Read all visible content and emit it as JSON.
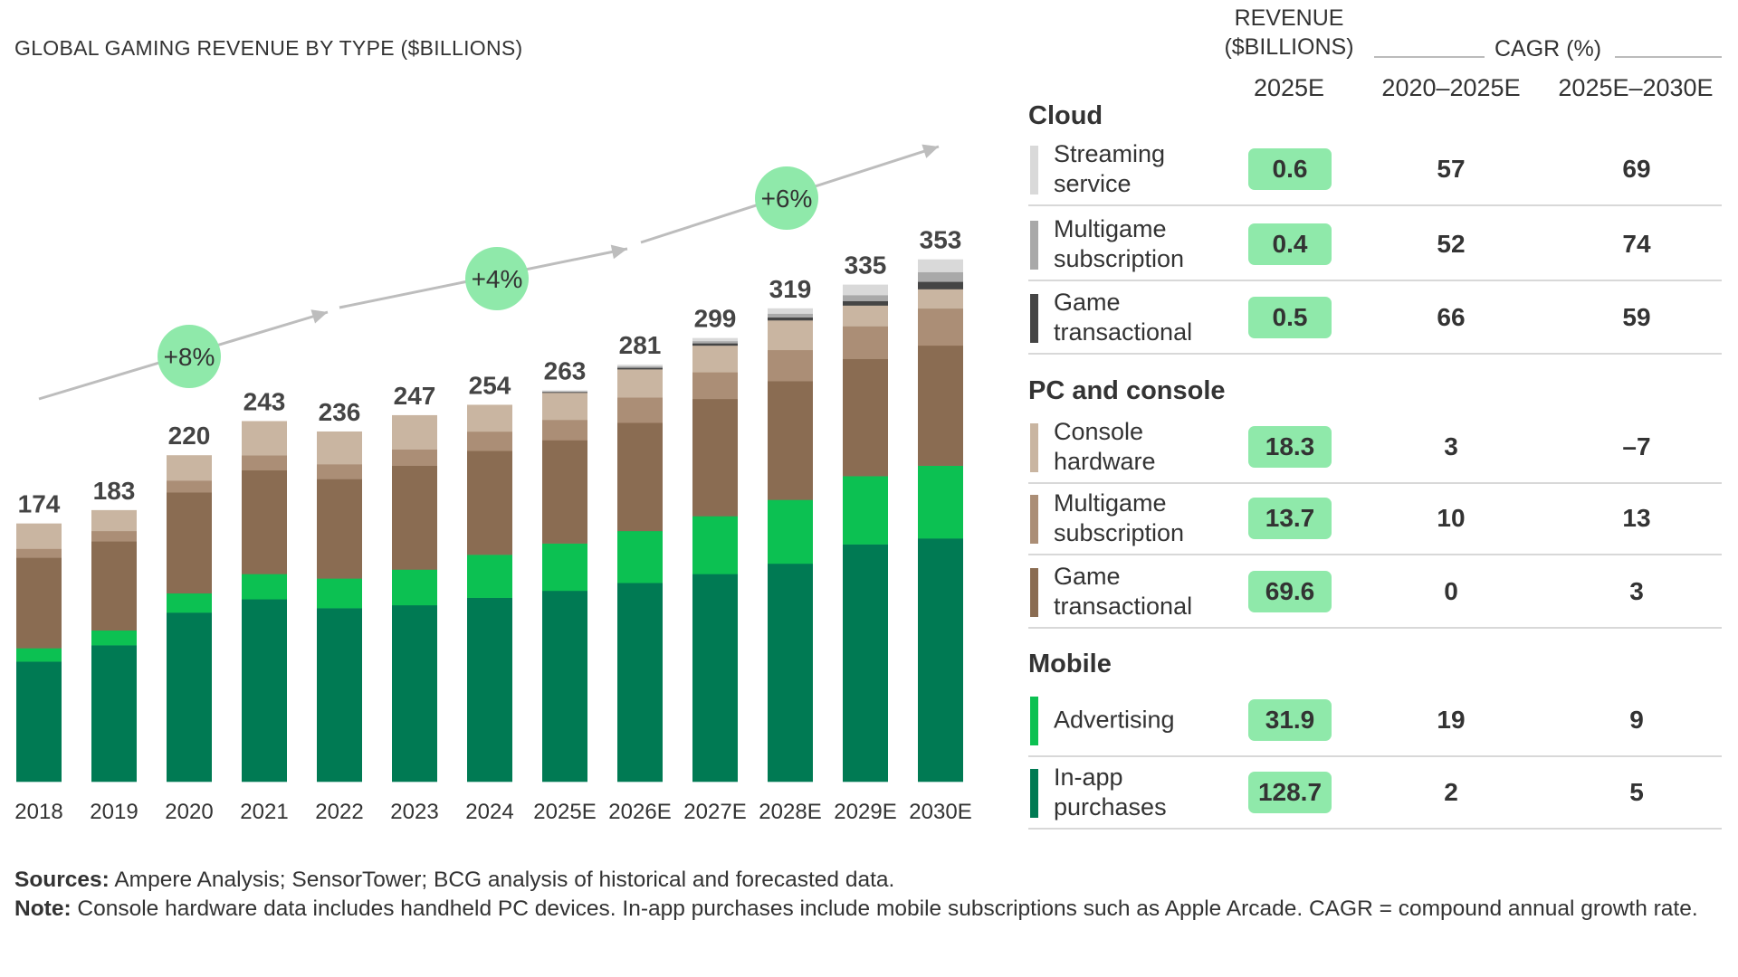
{
  "title": "GLOBAL GAMING REVENUE BY TYPE ($BILLIONS)",
  "chart_data": {
    "type": "bar",
    "stacked": true,
    "title": "GLOBAL GAMING REVENUE BY TYPE ($BILLIONS)",
    "categories": [
      "2018",
      "2019",
      "2020",
      "2021",
      "2022",
      "2023",
      "2024",
      "2025E",
      "2026E",
      "2027E",
      "2028E",
      "2029E",
      "2030E"
    ],
    "totals": [
      "174",
      "183",
      "220",
      "243",
      "236",
      "247",
      "254",
      "263",
      "281",
      "299",
      "319",
      "335",
      "353"
    ],
    "series": [
      {
        "name": "In-app purchases",
        "color": "#007a53",
        "values": [
          81,
          92,
          114,
          123,
          117,
          119,
          124,
          128.7,
          134,
          140,
          147,
          160,
          164
        ]
      },
      {
        "name": "Advertising",
        "color": "#0cc152",
        "values": [
          9,
          10,
          13,
          17,
          20,
          24,
          29,
          31.9,
          35,
          39,
          43,
          46,
          49
        ]
      },
      {
        "name": "Game transactional",
        "color": "#8a6c52",
        "values": [
          61,
          60,
          68,
          70,
          67,
          70,
          70,
          69.6,
          73,
          79,
          80,
          79,
          81
        ]
      },
      {
        "name": "Multigame subscription",
        "color": "#ab8e76",
        "values": [
          6,
          7,
          8,
          10,
          10,
          11,
          13,
          13.7,
          17,
          18,
          21,
          22,
          25
        ]
      },
      {
        "name": "Console hardware",
        "color": "#c9b5a1",
        "values": [
          17,
          14,
          17,
          23,
          22,
          23,
          18,
          18.3,
          19,
          18,
          20,
          14,
          13
        ]
      },
      {
        "name": "Game transactional",
        "color": "#454545",
        "values": [
          0,
          0,
          0,
          0,
          0,
          0,
          0,
          0.5,
          1,
          1.5,
          2,
          3,
          5
        ]
      },
      {
        "name": "Multigame subscription",
        "color": "#a9a9a9",
        "values": [
          0,
          0,
          0,
          0,
          0,
          0,
          0,
          0.4,
          1,
          1.5,
          2.5,
          4,
          6.5
        ]
      },
      {
        "name": "Streaming service",
        "color": "#d9d9d9",
        "values": [
          0,
          0,
          0,
          0,
          0,
          0,
          0,
          0.6,
          1,
          2,
          3.5,
          7,
          8.5
        ]
      }
    ],
    "growth_annotations": [
      "+8%",
      "+4%",
      "+6%"
    ],
    "ylim": [
      0,
      380
    ]
  },
  "table": {
    "revenue_header": "REVENUE ($BILLIONS)",
    "cagr_header": "CAGR (%)",
    "col_rev": "2025E",
    "col_c1": "2020–2025E",
    "col_c2": "2025E–2030E",
    "sections": [
      {
        "name": "Cloud",
        "rows": [
          {
            "label": "Streaming service",
            "value": "0.6",
            "c1": "57",
            "c2": "69",
            "color": "#d9d9d9"
          },
          {
            "label": "Multigame subscription",
            "value": "0.4",
            "c1": "52",
            "c2": "74",
            "color": "#a9a9a9"
          },
          {
            "label": "Game transactional",
            "value": "0.5",
            "c1": "66",
            "c2": "59",
            "color": "#454545"
          }
        ]
      },
      {
        "name": "PC and console",
        "rows": [
          {
            "label": "Console hardware",
            "value": "18.3",
            "c1": "3",
            "c2": "–7",
            "color": "#c9b5a1"
          },
          {
            "label": "Multigame subscription",
            "value": "13.7",
            "c1": "10",
            "c2": "13",
            "color": "#ab8e76"
          },
          {
            "label": "Game transactional",
            "value": "69.6",
            "c1": "0",
            "c2": "3",
            "color": "#8a6c52"
          }
        ]
      },
      {
        "name": "Mobile",
        "rows": [
          {
            "label": "Advertising",
            "value": "31.9",
            "c1": "19",
            "c2": "9",
            "color": "#0cc152"
          },
          {
            "label": "In-app purchases",
            "value": "128.7",
            "c1": "2",
            "c2": "5",
            "color": "#007a53"
          }
        ]
      }
    ]
  },
  "footer": {
    "sources_label": "Sources:",
    "sources": "Ampere Analysis; SensorTower; BCG analysis of historical and forecasted data.",
    "note_label": "Note:",
    "note": "Console hardware data includes handheld PC devices. In-app purchases include mobile subscriptions such as Apple Arcade. CAGR = compound annual growth rate."
  }
}
